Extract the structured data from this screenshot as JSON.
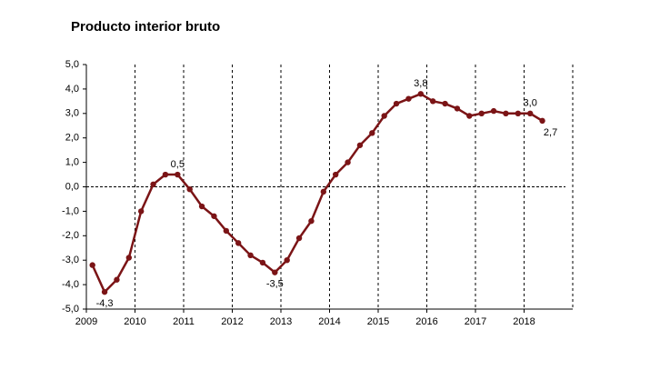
{
  "chart_data": {
    "type": "line",
    "title": "Producto interior bruto",
    "x": [
      2009.125,
      2009.375,
      2009.625,
      2009.875,
      2010.125,
      2010.375,
      2010.625,
      2010.875,
      2011.125,
      2011.375,
      2011.625,
      2011.875,
      2012.125,
      2012.375,
      2012.625,
      2012.875,
      2013.125,
      2013.375,
      2013.625,
      2013.875,
      2014.125,
      2014.375,
      2014.625,
      2014.875,
      2015.125,
      2015.375,
      2015.625,
      2015.875,
      2016.125,
      2016.375,
      2016.625,
      2016.875,
      2017.125,
      2017.375,
      2017.625,
      2017.875,
      2018.125,
      2018.375
    ],
    "series": [
      {
        "color": "#7b1416",
        "values": [
          -3.2,
          -4.3,
          -3.8,
          -2.9,
          -1.0,
          0.1,
          0.5,
          0.5,
          -0.1,
          -0.8,
          -1.2,
          -1.8,
          -2.3,
          -2.8,
          -3.1,
          -3.5,
          -3.0,
          -2.1,
          -1.4,
          -0.2,
          0.5,
          1.0,
          1.7,
          2.2,
          2.9,
          3.4,
          3.6,
          3.8,
          3.5,
          3.4,
          3.2,
          2.9,
          3.0,
          3.1,
          3.0,
          3.0,
          3.0,
          2.7
        ],
        "value_labels": [
          null,
          "-4,3",
          null,
          null,
          null,
          null,
          null,
          "0,5",
          null,
          null,
          null,
          null,
          null,
          null,
          null,
          "-3,5",
          null,
          null,
          null,
          null,
          null,
          null,
          null,
          null,
          null,
          null,
          null,
          "3,8",
          null,
          null,
          null,
          null,
          null,
          null,
          null,
          null,
          "3,0",
          "2,7"
        ]
      }
    ],
    "xlim": [
      2009,
      2019
    ],
    "xticks": [
      2009,
      2010,
      2011,
      2012,
      2013,
      2014,
      2015,
      2016,
      2017,
      2018
    ],
    "ylim": [
      -5,
      5
    ],
    "yticks": [
      {
        "value": -5,
        "label": "-5,0"
      },
      {
        "value": -4,
        "label": "-4,0"
      },
      {
        "value": -3,
        "label": "-3,0"
      },
      {
        "value": -2,
        "label": "-2,0"
      },
      {
        "value": -1,
        "label": "-1,0"
      },
      {
        "value": 0,
        "label": "0,0"
      },
      {
        "value": 1,
        "label": "1,0"
      },
      {
        "value": 2,
        "label": "2,0"
      },
      {
        "value": 3,
        "label": "3,0"
      },
      {
        "value": 4,
        "label": "4,0"
      },
      {
        "value": 5,
        "label": "5,0"
      }
    ],
    "grid": true
  }
}
